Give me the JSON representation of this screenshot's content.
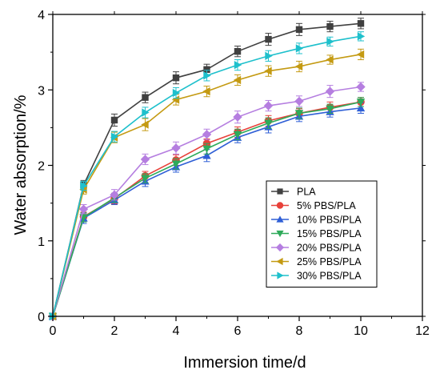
{
  "chart_data": {
    "type": "line",
    "xlabel": "Immersion time/d",
    "ylabel": "Water absorption/%",
    "xlim": [
      0,
      12
    ],
    "ylim": [
      0,
      4
    ],
    "xticks": [
      "0",
      "2",
      "4",
      "6",
      "8",
      "10",
      "12"
    ],
    "yticks": [
      "0",
      "1",
      "2",
      "3",
      "4"
    ],
    "grid": false,
    "legend_position": "bottom-right",
    "x": [
      0,
      1,
      2,
      3,
      4,
      5,
      6,
      7,
      8,
      9,
      10
    ],
    "series": [
      {
        "name": "PLA",
        "color": "#404040",
        "marker": "square",
        "values": [
          0,
          1.74,
          2.6,
          2.9,
          3.16,
          3.27,
          3.51,
          3.67,
          3.8,
          3.84,
          3.88
        ],
        "errors": [
          0,
          0.06,
          0.08,
          0.07,
          0.08,
          0.07,
          0.07,
          0.08,
          0.08,
          0.07,
          0.07
        ]
      },
      {
        "name": "5% PBS/PLA",
        "color": "#e8413a",
        "marker": "circle",
        "values": [
          0,
          1.32,
          1.56,
          1.86,
          2.07,
          2.29,
          2.44,
          2.59,
          2.69,
          2.77,
          2.84
        ],
        "errors": [
          0,
          0.06,
          0.07,
          0.06,
          0.07,
          0.06,
          0.07,
          0.07,
          0.06,
          0.07,
          0.06
        ]
      },
      {
        "name": "10% PBS/PLA",
        "color": "#2f5fd6",
        "marker": "triangle-up",
        "values": [
          0,
          1.3,
          1.54,
          1.79,
          1.98,
          2.13,
          2.37,
          2.51,
          2.65,
          2.71,
          2.76
        ],
        "errors": [
          0,
          0.07,
          0.06,
          0.07,
          0.07,
          0.08,
          0.07,
          0.08,
          0.07,
          0.07,
          0.07
        ]
      },
      {
        "name": "15% PBS/PLA",
        "color": "#2eaa5a",
        "marker": "triangle-down",
        "values": [
          0,
          1.31,
          1.57,
          1.83,
          2.02,
          2.22,
          2.41,
          2.56,
          2.69,
          2.75,
          2.84
        ],
        "errors": [
          0,
          0.06,
          0.06,
          0.06,
          0.07,
          0.07,
          0.07,
          0.07,
          0.07,
          0.06,
          0.06
        ]
      },
      {
        "name": "20% PBS/PLA",
        "color": "#b57ee0",
        "marker": "diamond",
        "values": [
          0,
          1.42,
          1.61,
          2.08,
          2.23,
          2.41,
          2.64,
          2.79,
          2.85,
          2.98,
          3.04
        ],
        "errors": [
          0,
          0.06,
          0.07,
          0.07,
          0.08,
          0.07,
          0.08,
          0.07,
          0.07,
          0.08,
          0.06
        ]
      },
      {
        "name": "25% PBS/PLA",
        "color": "#c49a12",
        "marker": "triangle-left",
        "values": [
          0,
          1.68,
          2.37,
          2.54,
          2.87,
          2.98,
          3.13,
          3.25,
          3.31,
          3.4,
          3.47
        ],
        "errors": [
          0,
          0.06,
          0.07,
          0.08,
          0.07,
          0.07,
          0.07,
          0.07,
          0.07,
          0.06,
          0.07
        ]
      },
      {
        "name": "30% PBS/PLA",
        "color": "#1ec0cc",
        "marker": "triangle-right",
        "values": [
          0,
          1.73,
          2.38,
          2.7,
          2.96,
          3.19,
          3.33,
          3.45,
          3.55,
          3.64,
          3.71
        ],
        "errors": [
          0,
          0.06,
          0.07,
          0.07,
          0.07,
          0.07,
          0.07,
          0.07,
          0.07,
          0.06,
          0.06
        ]
      }
    ]
  }
}
